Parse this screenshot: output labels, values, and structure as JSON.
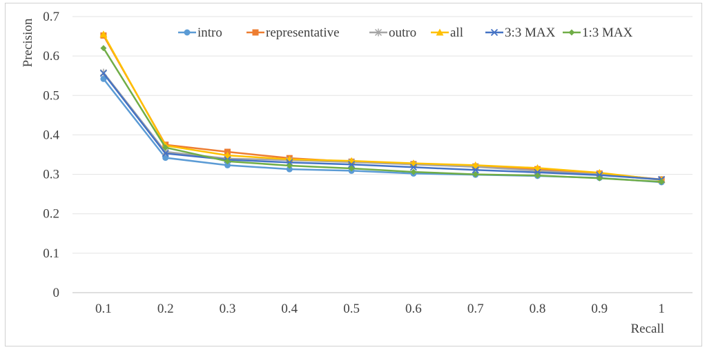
{
  "chart_data": {
    "type": "line",
    "xlabel": "Recall",
    "ylabel": "Precision",
    "categories": [
      "0.1",
      "0.2",
      "0.3",
      "0.4",
      "0.5",
      "0.6",
      "0.7",
      "0.8",
      "0.9",
      "1"
    ],
    "ylim": [
      0,
      0.7
    ],
    "yticks": [
      "0",
      "0.1",
      "0.2",
      "0.3",
      "0.4",
      "0.5",
      "0.6",
      "0.7"
    ],
    "grid": true,
    "legend_position": "top-right",
    "series": [
      {
        "name": "intro",
        "color": "#5B9BD5",
        "marker": "circle",
        "values": [
          0.542,
          0.342,
          0.323,
          0.313,
          0.309,
          0.302,
          0.299,
          0.296,
          0.291,
          0.28
        ]
      },
      {
        "name": "representative",
        "color": "#ED7D31",
        "marker": "square",
        "values": [
          0.652,
          0.375,
          0.357,
          0.341,
          0.332,
          0.326,
          0.32,
          0.313,
          0.302,
          0.287
        ]
      },
      {
        "name": "outro",
        "color": "#A5A5A5",
        "marker": "star",
        "values": [
          0.558,
          0.357,
          0.34,
          0.336,
          0.331,
          0.325,
          0.319,
          0.309,
          0.3,
          0.286
        ]
      },
      {
        "name": "all",
        "color": "#FFC000",
        "marker": "triangle",
        "values": [
          0.655,
          0.373,
          0.348,
          0.338,
          0.334,
          0.328,
          0.323,
          0.316,
          0.304,
          0.286
        ]
      },
      {
        "name": "3:3 MAX",
        "color": "#4472C4",
        "marker": "x",
        "values": [
          0.556,
          0.353,
          0.337,
          0.33,
          0.325,
          0.318,
          0.311,
          0.305,
          0.298,
          0.287
        ]
      },
      {
        "name": "1:3 MAX",
        "color": "#70AD47",
        "marker": "diamond",
        "values": [
          0.62,
          0.368,
          0.333,
          0.322,
          0.315,
          0.306,
          0.3,
          0.297,
          0.29,
          0.281
        ]
      }
    ]
  }
}
